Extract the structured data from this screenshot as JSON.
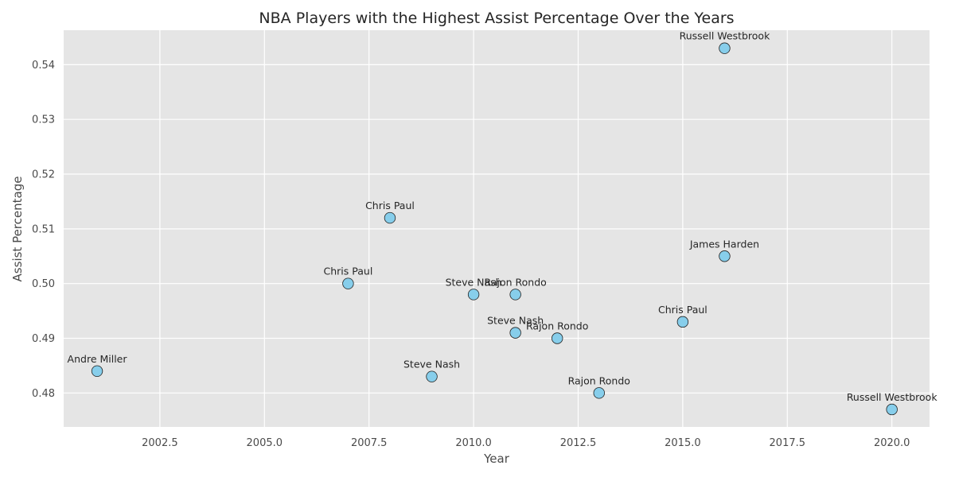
{
  "chart_data": {
    "type": "scatter",
    "title": "NBA Players with the Highest Assist Percentage Over the Years",
    "xlabel": "Year",
    "ylabel": "Assist Percentage",
    "xlim": [
      2000.2,
      2020.9
    ],
    "ylim": [
      0.4738,
      0.5463
    ],
    "xticks": [
      2002.5,
      2005.0,
      2007.5,
      2010.0,
      2012.5,
      2015.0,
      2017.5,
      2020.0
    ],
    "xtick_labels": [
      "2002.5",
      "2005.0",
      "2007.5",
      "2010.0",
      "2012.5",
      "2015.0",
      "2017.5",
      "2020.0"
    ],
    "yticks": [
      0.48,
      0.49,
      0.5,
      0.51,
      0.52,
      0.53,
      0.54
    ],
    "ytick_labels": [
      "0.48",
      "0.49",
      "0.50",
      "0.51",
      "0.52",
      "0.53",
      "0.54"
    ],
    "grid": true,
    "legend": "none",
    "colors": {
      "background": "#e5e5e5",
      "grid": "#ffffff",
      "marker_fill": "#87ceeb",
      "marker_edge": "#222222"
    },
    "points": [
      {
        "x": 2001,
        "y": 0.484,
        "label": "Andre Miller"
      },
      {
        "x": 2007,
        "y": 0.5,
        "label": "Chris Paul"
      },
      {
        "x": 2008,
        "y": 0.512,
        "label": "Chris Paul"
      },
      {
        "x": 2009,
        "y": 0.483,
        "label": "Steve Nash"
      },
      {
        "x": 2010,
        "y": 0.498,
        "label": "Steve Nash"
      },
      {
        "x": 2011,
        "y": 0.498,
        "label": "Rajon Rondo"
      },
      {
        "x": 2011,
        "y": 0.491,
        "label": "Steve Nash"
      },
      {
        "x": 2012,
        "y": 0.49,
        "label": "Rajon Rondo"
      },
      {
        "x": 2013,
        "y": 0.48,
        "label": "Rajon Rondo"
      },
      {
        "x": 2015,
        "y": 0.493,
        "label": "Chris Paul"
      },
      {
        "x": 2016,
        "y": 0.543,
        "label": "Russell Westbrook"
      },
      {
        "x": 2016,
        "y": 0.505,
        "label": "James Harden"
      },
      {
        "x": 2020,
        "y": 0.477,
        "label": "Russell Westbrook"
      }
    ]
  }
}
